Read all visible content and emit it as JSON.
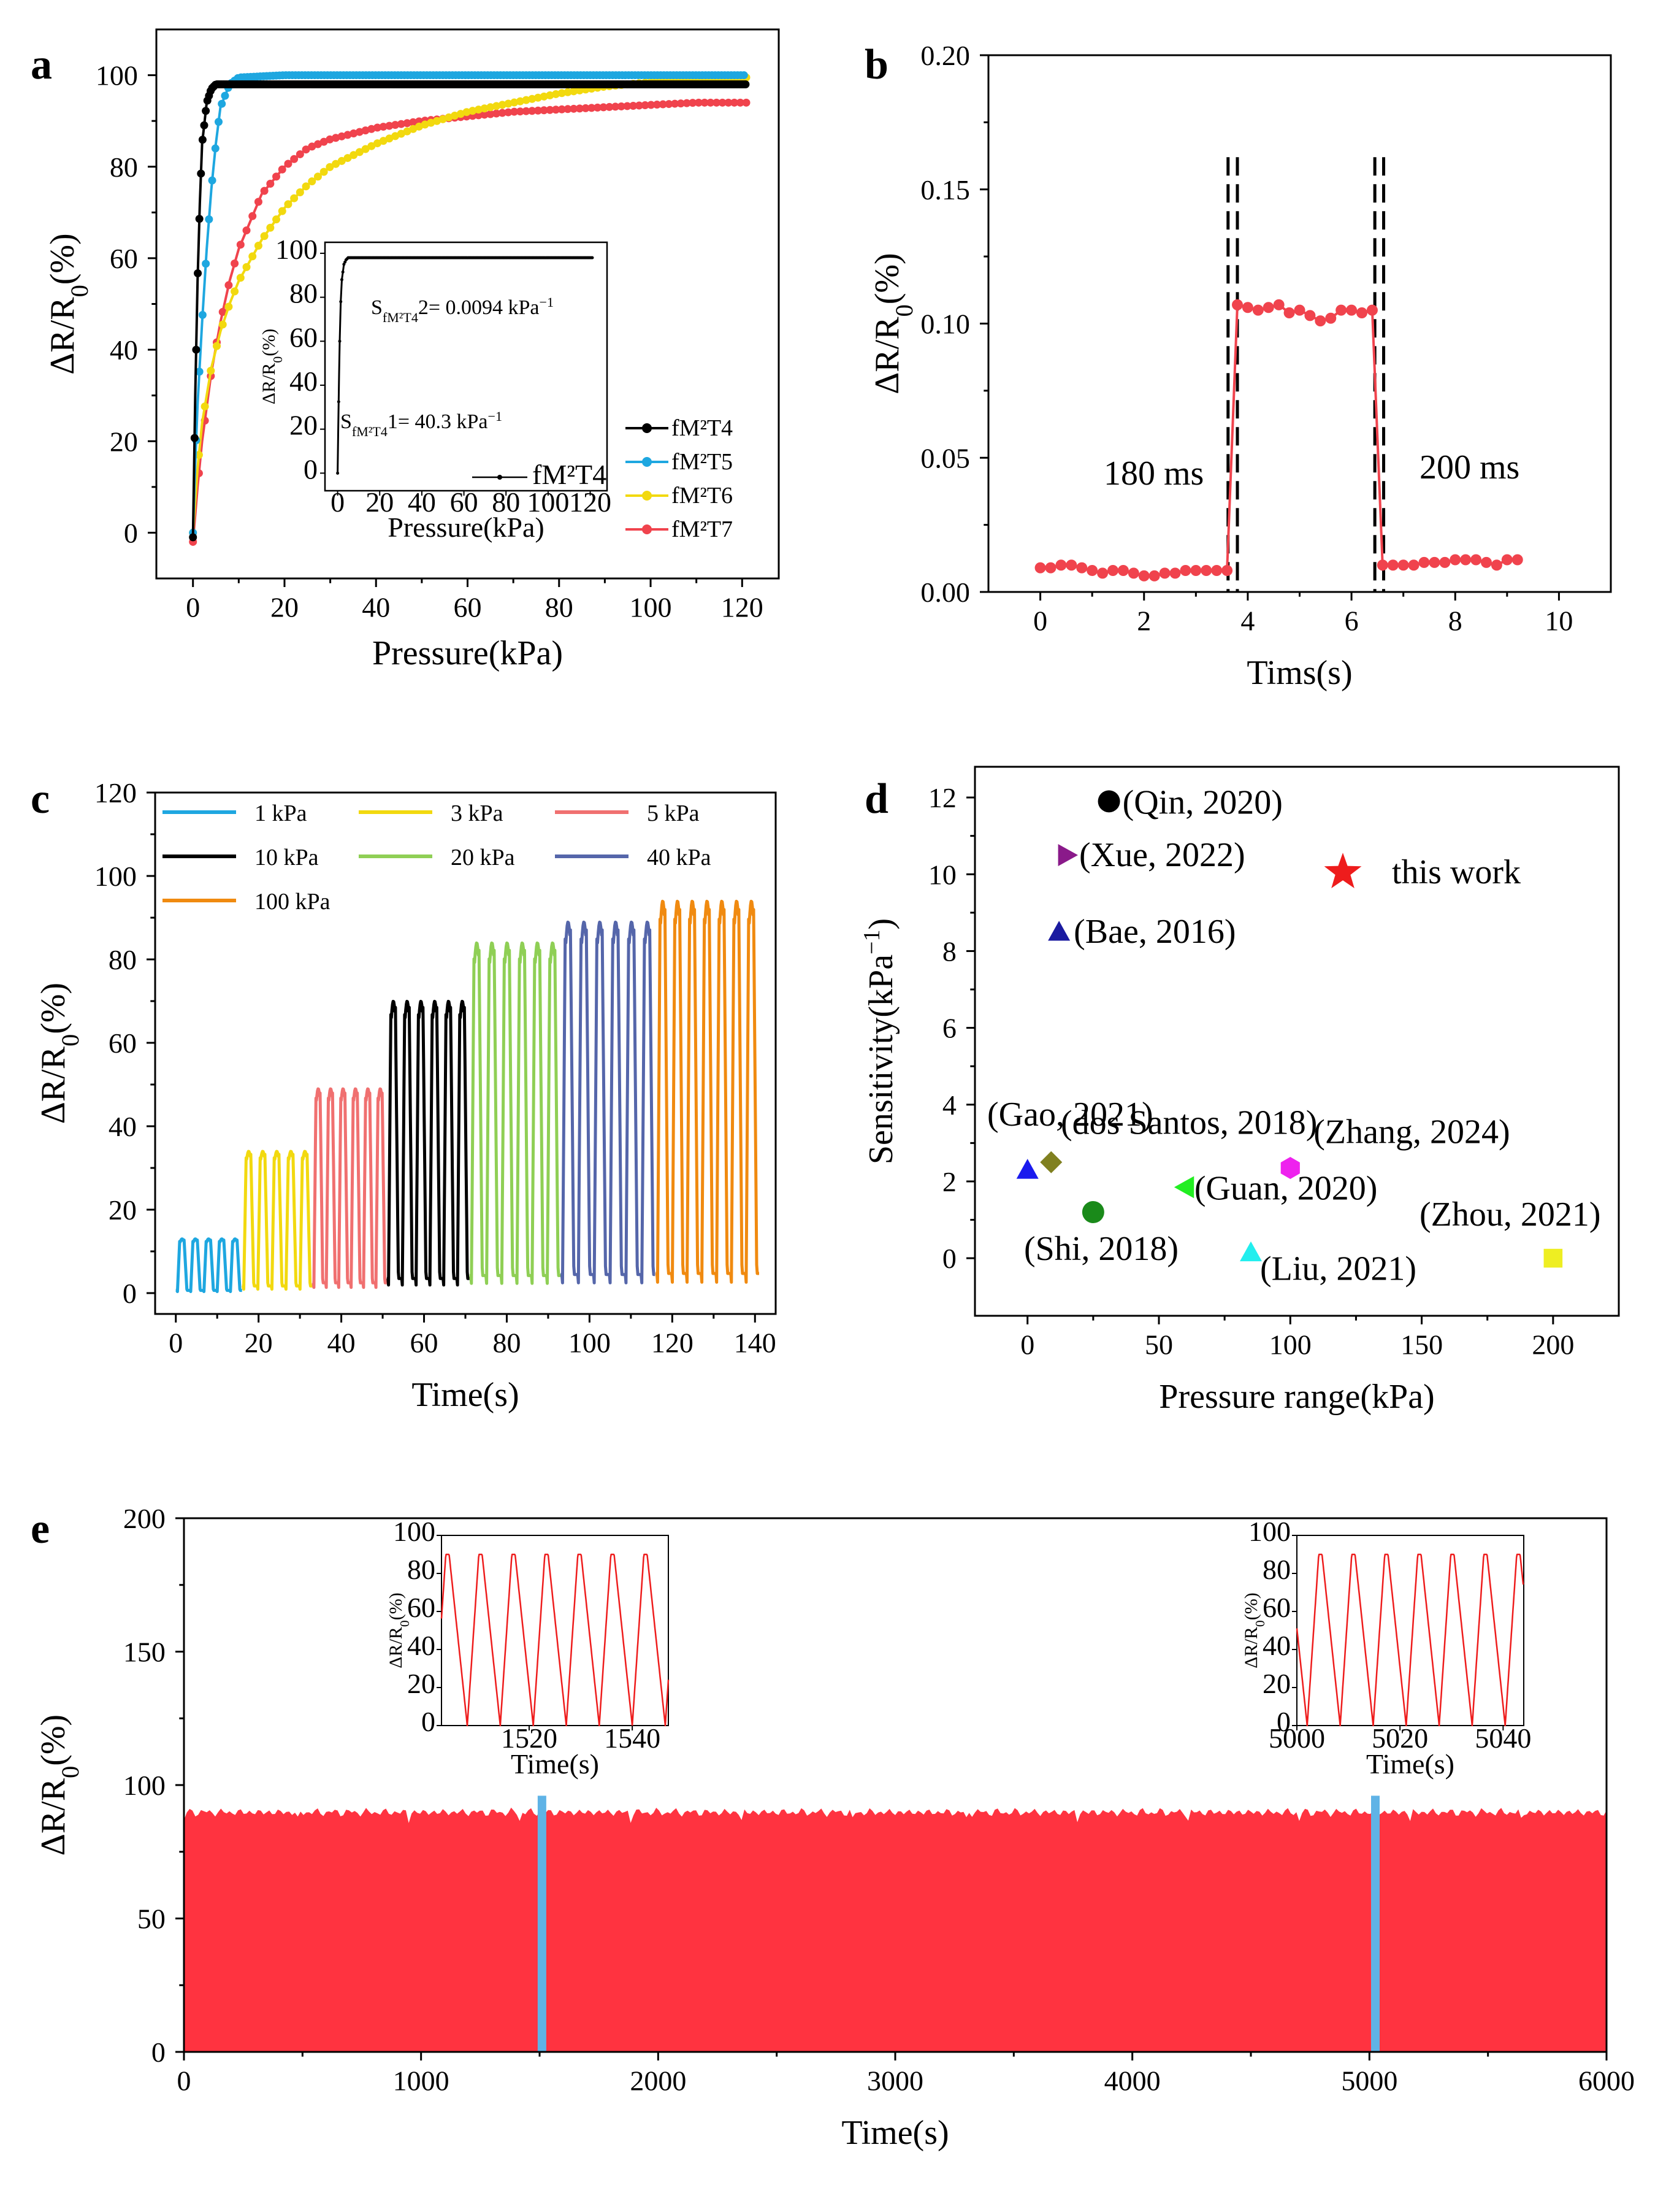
{
  "figure": {
    "panel_labels": [
      "a",
      "b",
      "c",
      "d",
      "e"
    ]
  },
  "chart_data": [
    {
      "panel": "a",
      "type": "line",
      "xlabel": "Pressure(kPa)",
      "ylabel": "ΔR/R0(%)",
      "xlim": [
        -8,
        128
      ],
      "ylim": [
        -10,
        110
      ],
      "xticks": [
        0,
        20,
        40,
        60,
        80,
        100,
        120
      ],
      "yticks": [
        0,
        20,
        40,
        60,
        80,
        100
      ],
      "legend_position": "bottom-right",
      "series": [
        {
          "name": "fM²T4",
          "color": "#000000",
          "x": [
            0,
            0.5,
            1,
            1.5,
            2,
            3,
            4,
            5,
            10,
            20,
            40,
            60,
            80,
            100,
            121
          ],
          "y": [
            -1,
            30,
            55,
            72,
            85,
            94,
            97,
            98,
            98,
            98,
            98,
            98,
            98,
            98,
            98
          ]
        },
        {
          "name": "fM²T5",
          "color": "#1ea7e0",
          "x": [
            0,
            0.5,
            1,
            2,
            3,
            4,
            5,
            6,
            8,
            10,
            20,
            40,
            60,
            80,
            100,
            121
          ],
          "y": [
            0,
            15,
            28,
            46,
            62,
            75,
            85,
            93,
            98,
            99.5,
            100,
            100,
            100,
            100,
            100,
            100
          ]
        },
        {
          "name": "fM²T6",
          "color": "#f2d90f",
          "x": [
            0,
            1,
            2,
            4,
            6,
            8,
            10,
            15,
            20,
            25,
            30,
            40,
            50,
            60,
            70,
            80,
            90,
            100,
            110,
            121
          ],
          "y": [
            0,
            14,
            24,
            36,
            44,
            50,
            55,
            64,
            71,
            76,
            80,
            85,
            89,
            92,
            94,
            96,
            97.5,
            98.5,
            99,
            99.5
          ]
        },
        {
          "name": "fM²T7",
          "color": "#f0434d",
          "x": [
            0,
            1,
            2,
            4,
            6,
            8,
            10,
            15,
            20,
            25,
            30,
            40,
            50,
            60,
            70,
            80,
            90,
            100,
            110,
            121
          ],
          "y": [
            -2,
            10,
            20,
            35,
            46,
            55,
            62,
            74,
            80,
            84,
            86,
            88.5,
            90,
            91,
            92,
            92.5,
            93,
            93.5,
            94,
            94
          ]
        }
      ],
      "inset": {
        "xlabel": "Pressure(kPa)",
        "ylabel": "ΔR/R0(%)",
        "xlim": [
          -6,
          128
        ],
        "ylim": [
          -8,
          105
        ],
        "xticks": [
          0,
          20,
          40,
          60,
          80,
          100,
          120
        ],
        "yticks": [
          0,
          20,
          40,
          60,
          80,
          100
        ],
        "legend": "fM²T4",
        "annotations": [
          "S_fM²T4 2= 0.0094 kPa⁻¹",
          "S_fM²T4 1= 40.3 kPa⁻¹"
        ],
        "annotation_parts": {
          "s2_base": "S",
          "s2_sub": "fM²T4",
          "s2_rest": "2= 0.0094 kPa",
          "s2_sup": "−1",
          "s1_base": "S",
          "s1_sub": "fM²T4",
          "s1_rest": "1= 40.3 kPa",
          "s1_sup": "−1"
        },
        "x": [
          0,
          0.3,
          0.7,
          1,
          1.5,
          2,
          3,
          4,
          5,
          10,
          30,
          60,
          90,
          121
        ],
        "y": [
          0,
          20,
          45,
          60,
          78,
          88,
          95,
          97,
          98,
          98,
          98,
          98,
          98,
          98
        ]
      }
    },
    {
      "panel": "b",
      "type": "line",
      "xlabel": "Tims(s)",
      "ylabel": "ΔR/R0(%)",
      "xlim": [
        -1,
        11
      ],
      "ylim": [
        0,
        0.2
      ],
      "xticks": [
        0,
        2,
        4,
        6,
        8,
        10
      ],
      "yticks": [
        0.0,
        0.05,
        0.1,
        0.15,
        0.2
      ],
      "ytick_labels": [
        "0.00",
        "0.05",
        "0.10",
        "0.15",
        "0.20"
      ],
      "annotations": [
        "180 ms",
        "200 ms"
      ],
      "dashed_lines_x": [
        3.62,
        3.8,
        6.45,
        6.62
      ],
      "series": [
        {
          "name": "response",
          "color": "#f0434d",
          "x": [
            0,
            0.2,
            0.4,
            0.6,
            0.8,
            1.0,
            1.2,
            1.4,
            1.6,
            1.8,
            2.0,
            2.2,
            2.4,
            2.6,
            2.8,
            3.0,
            3.2,
            3.4,
            3.6,
            3.8,
            4.0,
            4.2,
            4.4,
            4.6,
            4.8,
            5.0,
            5.2,
            5.4,
            5.6,
            5.8,
            6.0,
            6.2,
            6.4,
            6.6,
            6.8,
            7.0,
            7.2,
            7.4,
            7.6,
            7.8,
            8.0,
            8.2,
            8.4,
            8.6,
            8.8,
            9.0,
            9.2
          ],
          "y": [
            0.009,
            0.009,
            0.01,
            0.01,
            0.009,
            0.008,
            0.007,
            0.008,
            0.008,
            0.007,
            0.006,
            0.006,
            0.007,
            0.007,
            0.008,
            0.008,
            0.008,
            0.008,
            0.008,
            0.107,
            0.106,
            0.105,
            0.106,
            0.107,
            0.104,
            0.105,
            0.103,
            0.101,
            0.102,
            0.105,
            0.105,
            0.104,
            0.105,
            0.01,
            0.01,
            0.01,
            0.01,
            0.011,
            0.011,
            0.011,
            0.012,
            0.012,
            0.012,
            0.011,
            0.01,
            0.012,
            0.012
          ]
        }
      ]
    },
    {
      "panel": "c",
      "type": "line",
      "xlabel": "Time(s)",
      "ylabel": "ΔR/R0(%)",
      "xlim": [
        -5,
        145
      ],
      "ylim": [
        -5,
        120
      ],
      "xticks": [
        0,
        20,
        40,
        60,
        80,
        100,
        120,
        140
      ],
      "yticks": [
        0,
        20,
        40,
        60,
        80,
        100,
        120
      ],
      "legend_position": "top",
      "series": [
        {
          "name": "1 kPa",
          "color": "#1ea7e0",
          "t_start": 0,
          "t_end": 16,
          "peak": 13,
          "cycles": 5
        },
        {
          "name": "3 kPa",
          "color": "#f2d90f",
          "t_start": 16,
          "t_end": 33,
          "peak": 34,
          "cycles": 5
        },
        {
          "name": "5 kPa",
          "color": "#f07070",
          "t_start": 33,
          "t_end": 51,
          "peak": 49,
          "cycles": 6
        },
        {
          "name": "10 kPa",
          "color": "#000000",
          "t_start": 51,
          "t_end": 71,
          "peak": 70,
          "cycles": 6
        },
        {
          "name": "20 kPa",
          "color": "#8fcf55",
          "t_start": 71,
          "t_end": 93,
          "peak": 84,
          "cycles": 6
        },
        {
          "name": "40 kPa",
          "color": "#5566aa",
          "t_start": 93,
          "t_end": 116,
          "peak": 89,
          "cycles": 6
        },
        {
          "name": "100 kPa",
          "color": "#f08a10",
          "t_start": 116,
          "t_end": 141,
          "peak": 94,
          "cycles": 7
        }
      ]
    },
    {
      "panel": "d",
      "type": "scatter",
      "xlabel": "Pressure range(kPa)",
      "ylabel": "Sensitivity(kPa⁻¹)",
      "ylabel_base": "Sensitivity(kPa",
      "ylabel_sup": "−1",
      "ylabel_end": ")",
      "xlim": [
        -20,
        225
      ],
      "ylim": [
        -1.5,
        12.8
      ],
      "xticks": [
        0,
        50,
        100,
        150,
        200
      ],
      "yticks": [
        0,
        2,
        4,
        6,
        8,
        10,
        12
      ],
      "points": [
        {
          "label": "(Qin, 2020)",
          "x": 31,
          "y": 11.9,
          "marker": "circle",
          "color": "#000000"
        },
        {
          "label": "(Xue, 2022)",
          "x": 15,
          "y": 10.5,
          "marker": "triangle-right",
          "color": "#8a1a8a"
        },
        {
          "label": "this work",
          "x": 120,
          "y": 10.05,
          "marker": "star",
          "color": "#ee1c1c"
        },
        {
          "label": "(Bae, 2016)",
          "x": 12,
          "y": 8.5,
          "marker": "triangle-up",
          "color": "#1a1aa0"
        },
        {
          "label": "(Gao, 2021)",
          "x": 0,
          "y": 2.3,
          "marker": "triangle-up",
          "color": "#1a1aee"
        },
        {
          "label": "(dos Santos, 2018)",
          "x": 9,
          "y": 2.5,
          "marker": "diamond",
          "color": "#808020"
        },
        {
          "label": "(Zhang, 2024)",
          "x": 100,
          "y": 2.35,
          "marker": "hexagon",
          "color": "#ee22ee"
        },
        {
          "label": "(Guan, 2020)",
          "x": 60,
          "y": 1.85,
          "marker": "triangle-left",
          "color": "#22ee22"
        },
        {
          "label": "(Shi, 2018)",
          "x": 25,
          "y": 1.2,
          "marker": "circle",
          "color": "#1a8a1a"
        },
        {
          "label": "(Zhou, 2021)",
          "x": 200,
          "y": 0.0,
          "marker": "square",
          "color": "#eeee22"
        },
        {
          "label": "(Liu, 2021)",
          "x": 85,
          "y": 0.15,
          "marker": "triangle-up",
          "color": "#22eeee"
        }
      ]
    },
    {
      "panel": "e",
      "type": "area",
      "xlabel": "Time(s)",
      "ylabel": "ΔR/R0(%)",
      "xlim": [
        0,
        6000
      ],
      "ylim": [
        0,
        200
      ],
      "xticks": [
        0,
        1000,
        2000,
        3000,
        4000,
        5000,
        6000
      ],
      "yticks": [
        0,
        50,
        100,
        150,
        200
      ],
      "fill_color": "#ff3340",
      "peak_level": 91,
      "highlights_x": [
        1510,
        5025
      ],
      "highlight_color": "#5fb3e6",
      "insets": [
        {
          "xlabel": "Time(s)",
          "ylabel": "ΔR/R0(%)",
          "xlim": [
            1503,
            1547
          ],
          "ylim": [
            0,
            100
          ],
          "xticks": [
            1520,
            1540
          ],
          "yticks": [
            0,
            20,
            40,
            60,
            80,
            100
          ],
          "period": 6.4,
          "phase": 1508,
          "peak": 90
        },
        {
          "xlabel": "Time(s)",
          "ylabel": "ΔR/R0(%)",
          "xlim": [
            5000,
            5044
          ],
          "ylim": [
            0,
            100
          ],
          "xticks": [
            5000,
            5020,
            5040
          ],
          "yticks": [
            0,
            20,
            40,
            60,
            80,
            100
          ],
          "period": 6.4,
          "phase": 5002,
          "peak": 90
        }
      ]
    }
  ]
}
